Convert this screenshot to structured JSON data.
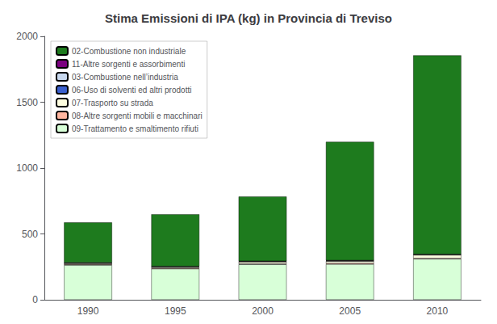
{
  "chart_data": {
    "type": "bar",
    "title": "Stima Emissioni di IPA (kg) in Provincia di Treviso",
    "categories": [
      "1990",
      "1995",
      "2000",
      "2005",
      "2010"
    ],
    "series": [
      {
        "name": "09-Trattamento e smaltimento rifiuti",
        "color": "#d8ffd8",
        "values": [
          263,
          235,
          268,
          270,
          310
        ]
      },
      {
        "name": "08-Altre sorgenti mobili e macchinari",
        "color": "#ffb6a0",
        "values": [
          5,
          5,
          5,
          8,
          5
        ]
      },
      {
        "name": "07-Trasporto su strada",
        "color": "#fdfde0",
        "values": [
          8,
          8,
          15,
          15,
          25
        ]
      },
      {
        "name": "06-Uso di solventi ed altri prodotti",
        "color": "#3a5fcd",
        "values": [
          2,
          2,
          2,
          2,
          2
        ]
      },
      {
        "name": "03-Combustione nell’industria",
        "color": "#c8d8ee",
        "values": [
          2,
          2,
          2,
          2,
          2
        ]
      },
      {
        "name": "11-Altre sorgenti e assorbimenti",
        "color": "#7b0080",
        "values": [
          2,
          2,
          2,
          2,
          2
        ]
      },
      {
        "name": "02-Combustione non industriale",
        "color": "#1e7b1e",
        "values": [
          305,
          395,
          490,
          900,
          1510
        ]
      }
    ],
    "ylim": [
      0,
      2000
    ],
    "yticks": [
      0,
      500,
      1000,
      1500,
      2000
    ],
    "stacked": true,
    "grid": false,
    "legend": "upper left"
  }
}
